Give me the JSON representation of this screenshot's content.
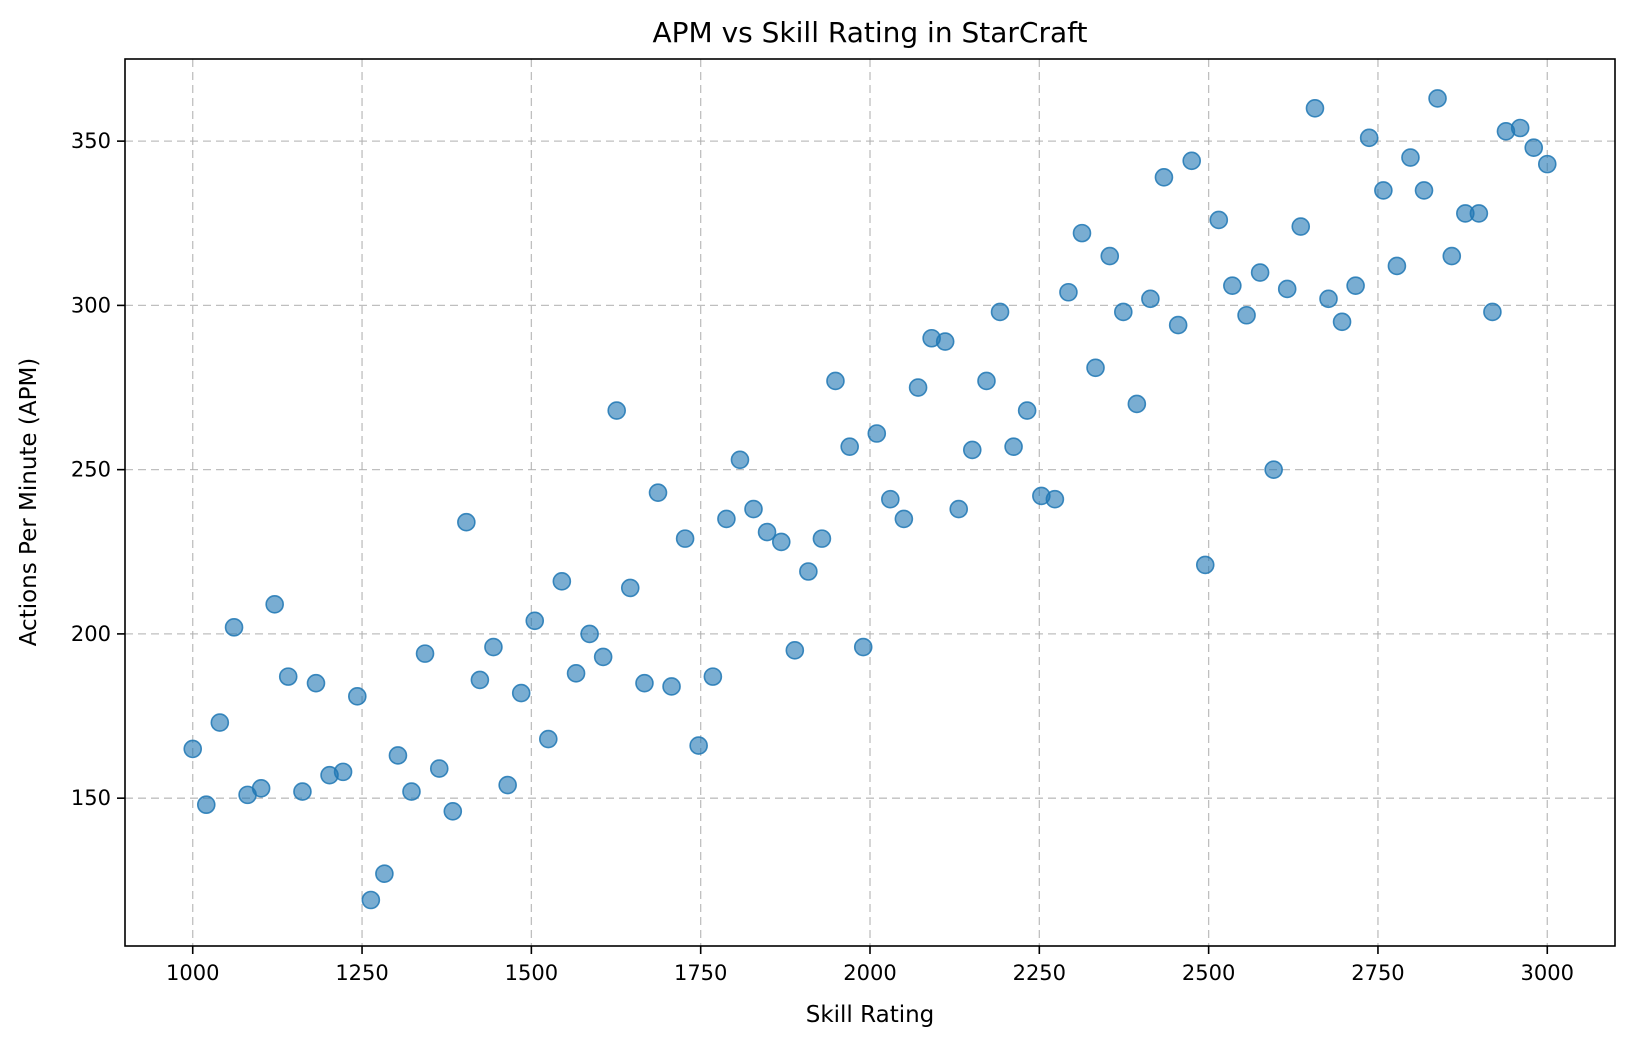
{
  "chart_data": {
    "type": "scatter",
    "title": "APM vs Skill Rating in StarCraft",
    "xlabel": "Skill Rating",
    "ylabel": "Actions Per Minute (APM)",
    "xlim": [
      900,
      3100
    ],
    "ylim": [
      105,
      375
    ],
    "xticks": [
      1000,
      1250,
      1500,
      1750,
      2000,
      2250,
      2500,
      2750,
      3000
    ],
    "yticks": [
      150,
      200,
      250,
      300,
      350
    ],
    "grid": true,
    "marker_color": "#1f77b4",
    "points": [
      [
        1000,
        165
      ],
      [
        1020,
        148
      ],
      [
        1040,
        173
      ],
      [
        1061,
        202
      ],
      [
        1081,
        151
      ],
      [
        1101,
        153
      ],
      [
        1121,
        209
      ],
      [
        1141,
        187
      ],
      [
        1162,
        152
      ],
      [
        1182,
        185
      ],
      [
        1202,
        157
      ],
      [
        1222,
        158
      ],
      [
        1243,
        181
      ],
      [
        1263,
        119
      ],
      [
        1283,
        127
      ],
      [
        1303,
        163
      ],
      [
        1323,
        152
      ],
      [
        1343,
        194
      ],
      [
        1364,
        159
      ],
      [
        1384,
        146
      ],
      [
        1404,
        234
      ],
      [
        1424,
        186
      ],
      [
        1444,
        196
      ],
      [
        1465,
        154
      ],
      [
        1485,
        182
      ],
      [
        1505,
        204
      ],
      [
        1525,
        168
      ],
      [
        1545,
        216
      ],
      [
        1566,
        188
      ],
      [
        1586,
        200
      ],
      [
        1606,
        193
      ],
      [
        1626,
        268
      ],
      [
        1646,
        214
      ],
      [
        1667,
        185
      ],
      [
        1687,
        243
      ],
      [
        1707,
        184
      ],
      [
        1727,
        229
      ],
      [
        1747,
        166
      ],
      [
        1768,
        187
      ],
      [
        1788,
        235
      ],
      [
        1808,
        253
      ],
      [
        1828,
        238
      ],
      [
        1848,
        231
      ],
      [
        1869,
        228
      ],
      [
        1889,
        195
      ],
      [
        1909,
        219
      ],
      [
        1929,
        229
      ],
      [
        1949,
        277
      ],
      [
        1970,
        257
      ],
      [
        1990,
        196
      ],
      [
        2010,
        261
      ],
      [
        2030,
        241
      ],
      [
        2050,
        235
      ],
      [
        2071,
        275
      ],
      [
        2091,
        290
      ],
      [
        2111,
        289
      ],
      [
        2131,
        238
      ],
      [
        2151,
        256
      ],
      [
        2172,
        277
      ],
      [
        2192,
        298
      ],
      [
        2212,
        257
      ],
      [
        2232,
        268
      ],
      [
        2253,
        242
      ],
      [
        2273,
        241
      ],
      [
        2293,
        304
      ],
      [
        2313,
        322
      ],
      [
        2333,
        281
      ],
      [
        2354,
        315
      ],
      [
        2374,
        298
      ],
      [
        2394,
        270
      ],
      [
        2414,
        302
      ],
      [
        2434,
        339
      ],
      [
        2455,
        294
      ],
      [
        2475,
        344
      ],
      [
        2495,
        221
      ],
      [
        2515,
        326
      ],
      [
        2535,
        306
      ],
      [
        2556,
        297
      ],
      [
        2576,
        310
      ],
      [
        2596,
        250
      ],
      [
        2616,
        305
      ],
      [
        2636,
        324
      ],
      [
        2657,
        360
      ],
      [
        2677,
        302
      ],
      [
        2697,
        295
      ],
      [
        2717,
        306
      ],
      [
        2737,
        351
      ],
      [
        2758,
        335
      ],
      [
        2778,
        312
      ],
      [
        2798,
        345
      ],
      [
        2818,
        335
      ],
      [
        2838,
        363
      ],
      [
        2859,
        315
      ],
      [
        2879,
        328
      ],
      [
        2899,
        328
      ],
      [
        2919,
        298
      ],
      [
        2939,
        353
      ],
      [
        2960,
        354
      ],
      [
        2980,
        348
      ],
      [
        3000,
        343
      ]
    ]
  }
}
